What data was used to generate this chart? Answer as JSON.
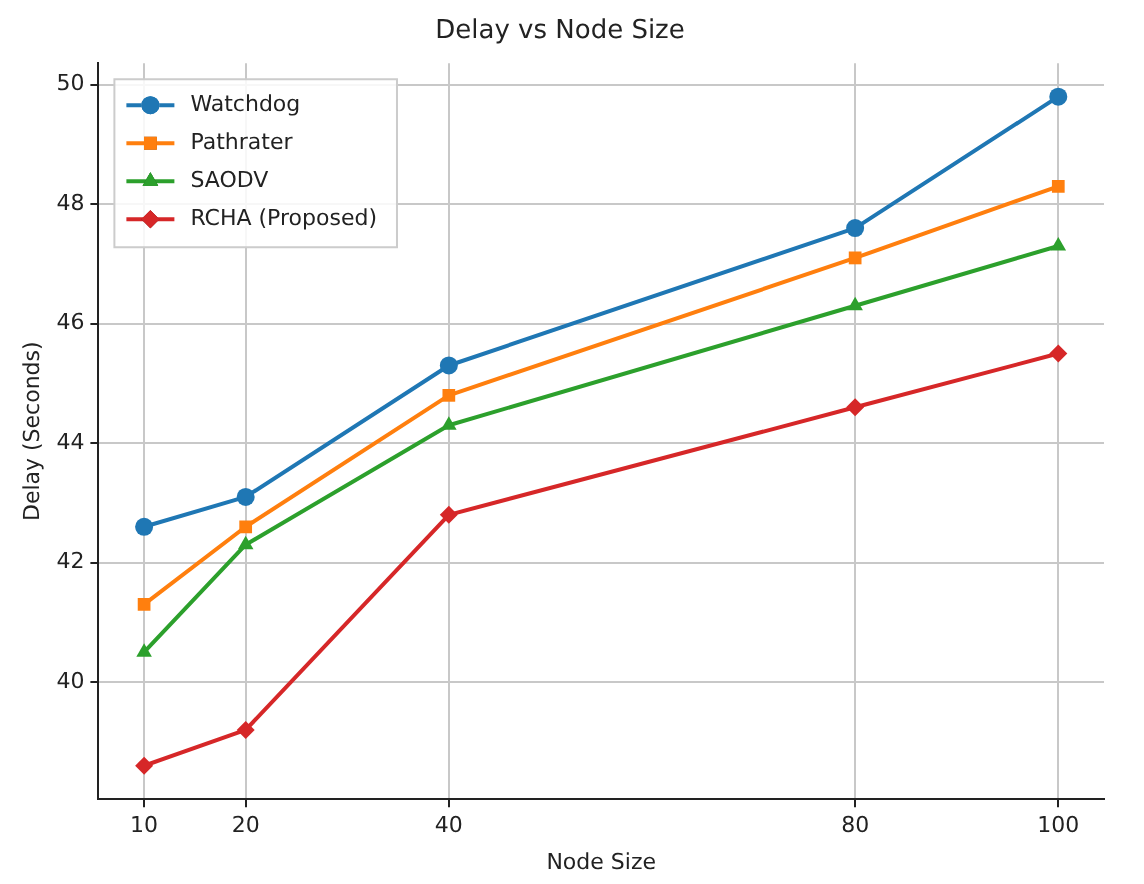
{
  "chart_data": {
    "type": "line",
    "title": "Delay vs Node Size",
    "xlabel": "Node Size",
    "ylabel": "Delay (Seconds)",
    "x": [
      10,
      20,
      40,
      80,
      100
    ],
    "xlim": [
      5.5,
      104.5
    ],
    "xticks": [
      10,
      20,
      40,
      80,
      100
    ],
    "ylim": [
      38.04,
      50.36
    ],
    "yticks": [
      40,
      42,
      44,
      46,
      48,
      50
    ],
    "grid": true,
    "legend": "top left",
    "series": [
      {
        "name": "Watchdog",
        "color": "#1f77b4",
        "marker": "circle",
        "values": [
          42.6,
          43.1,
          45.3,
          47.6,
          49.8
        ]
      },
      {
        "name": "Pathrater",
        "color": "#ff7f0e",
        "marker": "square",
        "values": [
          41.3,
          42.6,
          44.8,
          47.1,
          48.3
        ]
      },
      {
        "name": "SAODV",
        "color": "#2ca02c",
        "marker": "triangle",
        "values": [
          40.5,
          42.3,
          44.3,
          46.3,
          47.3
        ]
      },
      {
        "name": "RCHA (Proposed)",
        "color": "#d62728",
        "marker": "diamond",
        "values": [
          38.6,
          39.2,
          42.8,
          44.6,
          45.5
        ]
      }
    ]
  }
}
